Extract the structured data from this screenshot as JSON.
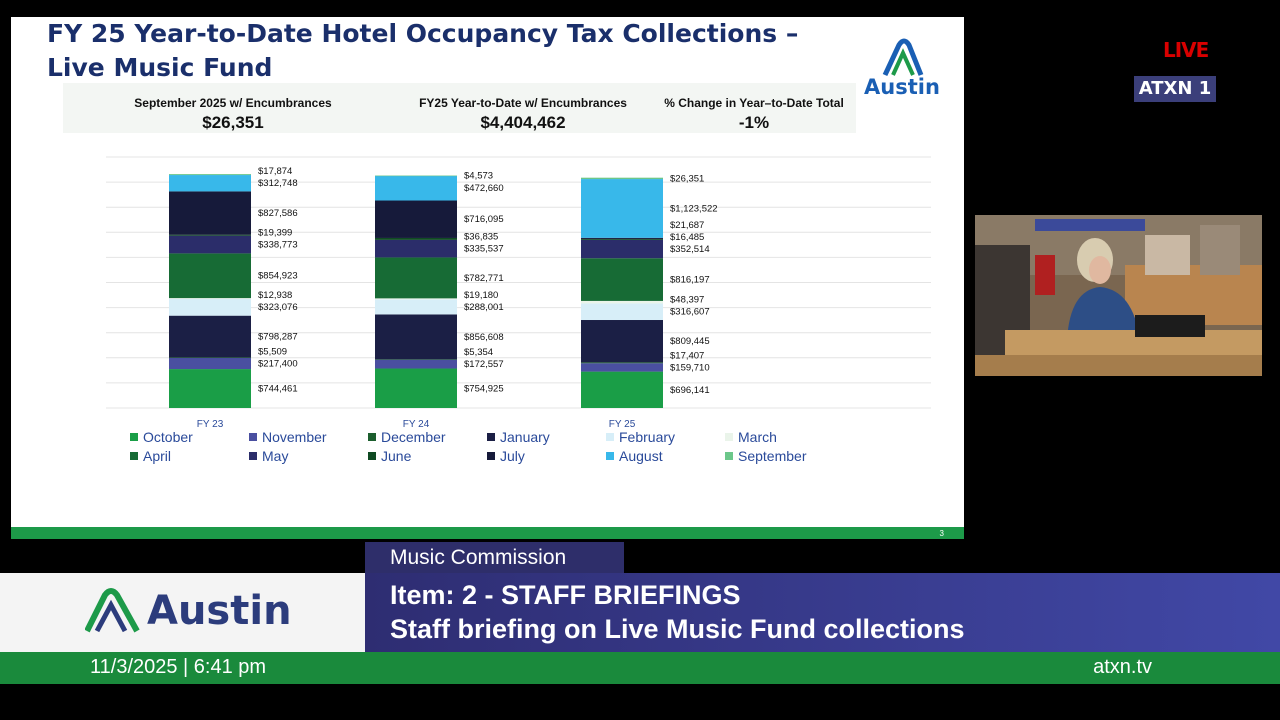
{
  "slide": {
    "title_line1": "FY 25 Year-to-Date Hotel Occupancy Tax Collections –",
    "title_line2": "Live Music Fund",
    "logo_text": "Austin",
    "stats": [
      {
        "label": "September 2025 w/ Encumbrances",
        "value": "$26,351"
      },
      {
        "label": "FY25 Year-to-Date w/ Encumbrances",
        "value": "$4,404,462"
      },
      {
        "label": "% Change in Year–to-Date Total",
        "value": "-1%"
      }
    ],
    "page_number": "3"
  },
  "chart_data": {
    "type": "bar",
    "stacked": true,
    "categories": [
      "FY 23",
      "FY 24",
      "FY 25"
    ],
    "series": [
      {
        "name": "October",
        "color": "#1a9e47",
        "values": [
          744461,
          754925,
          696141
        ],
        "labels": [
          "$744,461",
          "$754,925",
          "$696,141"
        ]
      },
      {
        "name": "November",
        "color": "#4a4fa0",
        "values": [
          217400,
          172557,
          159710
        ],
        "labels": [
          "$217,400",
          "$172,557",
          "$159,710"
        ]
      },
      {
        "name": "December",
        "color": "#1c5e2e",
        "values": [
          5509,
          5354,
          17407
        ],
        "labels": [
          "$5,509",
          "$5,354",
          "$17,407"
        ]
      },
      {
        "name": "January",
        "color": "#1b1f45",
        "values": [
          798287,
          856608,
          809445
        ],
        "labels": [
          "$798,287",
          "$856,608",
          "$809,445"
        ]
      },
      {
        "name": "February",
        "color": "#d7eef8",
        "values": [
          323076,
          288001,
          316607
        ],
        "labels": [
          "$323,076",
          "$288,001",
          "$316,607"
        ]
      },
      {
        "name": "March",
        "color": "#eaf4ea",
        "values": [
          12938,
          19180,
          48397
        ],
        "labels": [
          "$12,938",
          "$19,180",
          "$48,397"
        ]
      },
      {
        "name": "April",
        "color": "#176b35",
        "values": [
          854923,
          782771,
          816197
        ],
        "labels": [
          "$854,923",
          "$782,771",
          "$816,197"
        ]
      },
      {
        "name": "May",
        "color": "#2b2d6a",
        "values": [
          338773,
          335537,
          352514
        ],
        "labels": [
          "$338,773",
          "$335,537",
          "$352,514"
        ]
      },
      {
        "name": "June",
        "color": "#0f4a22",
        "values": [
          19399,
          36835,
          16485
        ],
        "labels": [
          "$19,399",
          "$36,835",
          "$16,485"
        ]
      },
      {
        "name": "July",
        "color": "#161a3a",
        "values": [
          827586,
          716095,
          21687
        ],
        "labels": [
          "$827,586",
          "$716,095",
          "$21,687"
        ]
      },
      {
        "name": "August",
        "color": "#38b8ea",
        "values": [
          312748,
          472660,
          1123522
        ],
        "labels": [
          "$312,748",
          "$472,660",
          "$1,123,522"
        ]
      },
      {
        "name": "September",
        "color": "#6cc78a",
        "values": [
          17874,
          4573,
          26351
        ],
        "labels": [
          "$17,874",
          "$4,573",
          "$26,351"
        ]
      }
    ],
    "legend_position": "bottom",
    "grid": true
  },
  "badges": {
    "live": "LIVE",
    "channel": "ATXN 1"
  },
  "lower_third": {
    "logo_text": "Austin",
    "tab": "Music Commission",
    "line1": "Item: 2 - STAFF BRIEFINGS",
    "line2": "Staff briefing on Live Music Fund collections",
    "date_time": "11/3/2025  |  6:41 pm",
    "site": "atxn.tv"
  }
}
